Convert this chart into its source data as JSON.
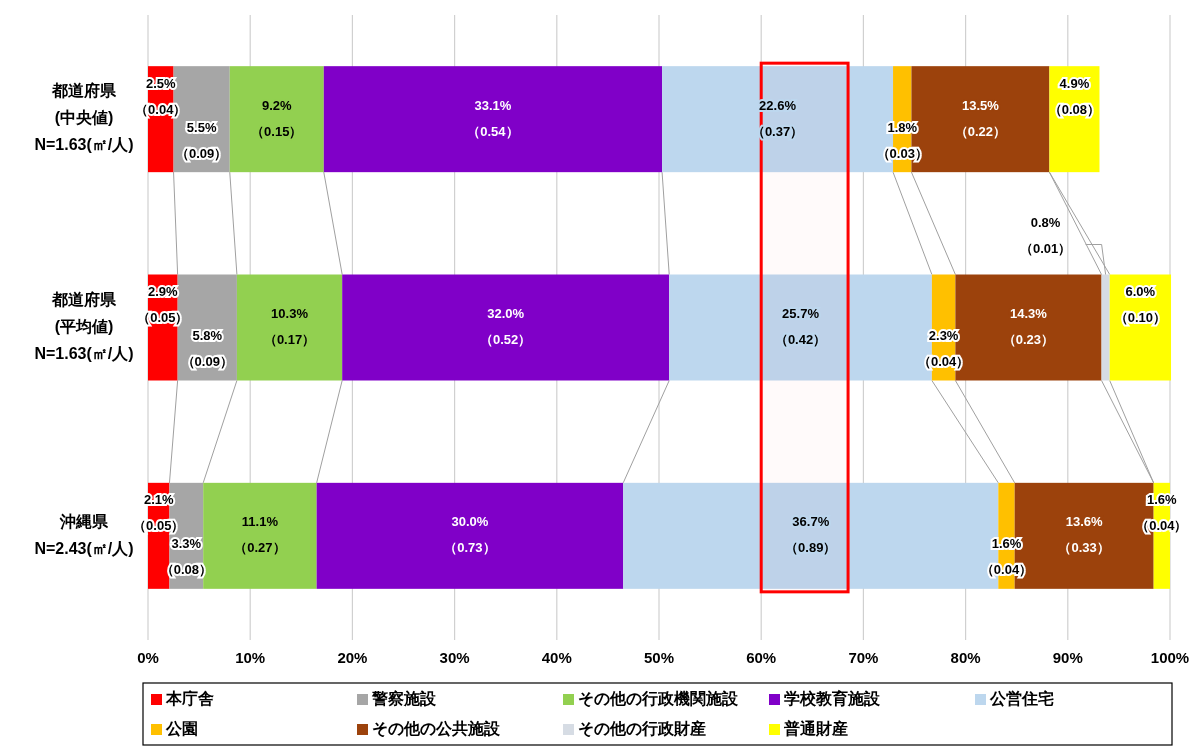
{
  "chart_data": {
    "type": "bar",
    "orientation": "horizontal",
    "stacked": true,
    "grid": "x",
    "legend": "bottom",
    "categories": [
      "都道府県\n(中央値)\nN=1.63(㎡/人)",
      "都道府県\n(平均値)\nN=1.63(㎡/人)",
      "沖縄県\nN=2.43(㎡/人)"
    ],
    "xlim": [
      0,
      100
    ],
    "xticks": [
      {
        "value": 0,
        "label": "0%"
      },
      {
        "value": 10,
        "label": "10%"
      },
      {
        "value": 20,
        "label": "20%"
      },
      {
        "value": 30,
        "label": "30%"
      },
      {
        "value": 40,
        "label": "40%"
      },
      {
        "value": 50,
        "label": "50%"
      },
      {
        "value": 60,
        "label": "60%"
      },
      {
        "value": 70,
        "label": "70%"
      },
      {
        "value": 80,
        "label": "80%"
      },
      {
        "value": 90,
        "label": "90%"
      },
      {
        "value": 100,
        "label": "100%"
      }
    ],
    "bands": [
      {
        "axis": "x",
        "from": 60,
        "to": 68.5,
        "color": "#ff0000"
      }
    ],
    "series": [
      {
        "name": "本庁舎",
        "color": "#ff0000",
        "values": [
          2.5,
          2.9,
          2.1
        ],
        "value_labels": [
          "2.5%\n（0.04）",
          "2.9%\n（0.05）",
          "2.1%\n（0.05）"
        ]
      },
      {
        "name": "警察施設",
        "color": "#a6a6a6",
        "values": [
          5.5,
          5.8,
          3.3
        ],
        "value_labels": [
          "5.5%\n（0.09）",
          "5.8%\n（0.09）",
          "3.3%\n（0.08）"
        ]
      },
      {
        "name": "その他の行政機関施設",
        "color": "#92d050",
        "values": [
          9.2,
          10.3,
          11.1
        ],
        "value_labels": [
          "9.2%\n（0.15）",
          "10.3%\n（0.17）",
          "11.1%\n（0.27）"
        ]
      },
      {
        "name": "学校教育施設",
        "color": "#8000c8",
        "values": [
          33.1,
          32.0,
          30.0
        ],
        "value_labels": [
          "33.1%\n（0.54）",
          "32.0%\n（0.52）",
          "30.0%\n（0.73）"
        ]
      },
      {
        "name": "公営住宅",
        "color": "#bdd7ee",
        "values": [
          22.6,
          25.7,
          36.7
        ],
        "value_labels": [
          "22.6%\n（0.37）",
          "25.7%\n（0.42）",
          "36.7%\n（0.89）"
        ]
      },
      {
        "name": "公園",
        "color": "#ffc000",
        "values": [
          1.8,
          2.3,
          1.6
        ],
        "value_labels": [
          "1.8%\n（0.03）",
          "2.3%\n（0.04）",
          "1.6%\n（0.04）"
        ]
      },
      {
        "name": "その他の公共施設",
        "color": "#9c420c",
        "values": [
          13.5,
          14.3,
          13.6
        ],
        "value_labels": [
          "13.5%\n（0.22）",
          "14.3%\n（0.23）",
          "13.6%\n（0.33）"
        ]
      },
      {
        "name": "その他の行政財産",
        "color": "#d6dce4",
        "values": [
          null,
          0.8,
          null
        ],
        "value_labels": [
          null,
          "0.8%\n（0.01）",
          null
        ]
      },
      {
        "name": "普通財産",
        "color": "#ffff00",
        "values": [
          4.9,
          6.0,
          1.6
        ],
        "value_labels": [
          "4.9%\n（0.08）",
          "6.0%\n（0.10）",
          "1.6%\n（0.04）"
        ]
      }
    ]
  }
}
